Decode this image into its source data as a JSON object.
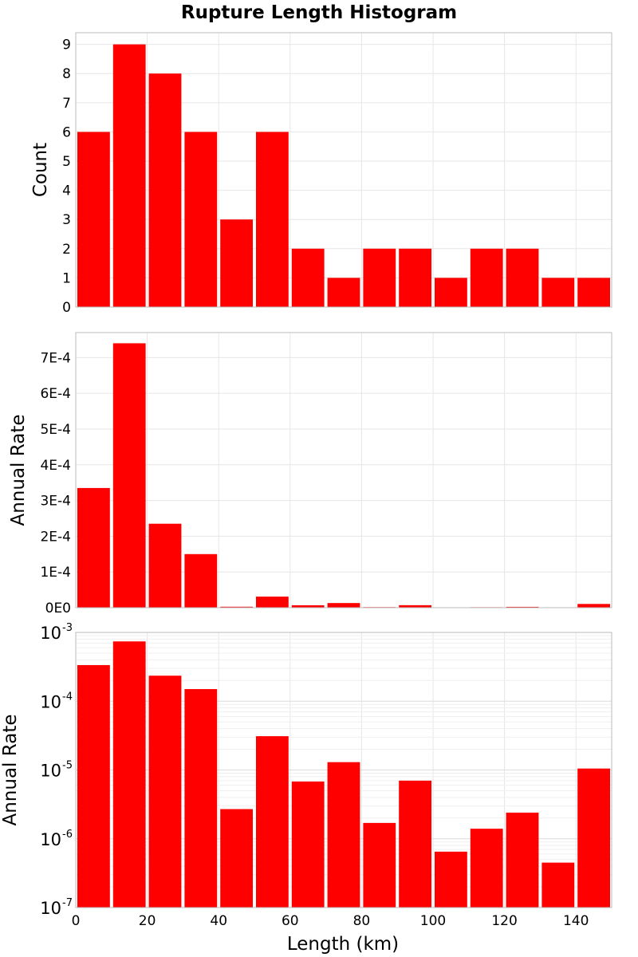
{
  "chart_data": {
    "title": "Rupture Length Histogram",
    "type": "bar",
    "x_categories": [
      "0-10",
      "10-20",
      "20-30",
      "30-40",
      "40-50",
      "50-60",
      "60-70",
      "70-80",
      "80-90",
      "90-100",
      "100-110",
      "110-120",
      "120-130",
      "130-140",
      "140-150"
    ],
    "bin_width": 10,
    "bin_starts": [
      0,
      10,
      20,
      30,
      40,
      50,
      60,
      70,
      80,
      90,
      100,
      110,
      120,
      130,
      140
    ],
    "xlabel": "Length (km)",
    "xlim": [
      0,
      150
    ],
    "x_ticks": [
      0,
      20,
      40,
      60,
      80,
      100,
      120,
      140
    ],
    "bar_color": "#ff0000",
    "grid": true,
    "panels": [
      {
        "ylabel": "Count",
        "scale": "linear",
        "ylim": [
          0,
          9.4
        ],
        "y_ticks": [
          0,
          1,
          2,
          3,
          4,
          5,
          6,
          7,
          8,
          9
        ],
        "y_tick_labels": [
          "0",
          "1",
          "2",
          "3",
          "4",
          "5",
          "6",
          "7",
          "8",
          "9"
        ],
        "values": [
          6,
          9,
          8,
          6,
          3,
          6,
          2,
          1,
          2,
          2,
          1,
          2,
          2,
          1,
          1
        ]
      },
      {
        "ylabel": "Annual Rate",
        "scale": "linear",
        "ylim": [
          0,
          0.00077
        ],
        "y_ticks": [
          0,
          0.0001,
          0.0002,
          0.0003,
          0.0004,
          0.0005,
          0.0006,
          0.0007
        ],
        "y_tick_labels": [
          "0E0",
          "1E-4",
          "2E-4",
          "3E-4",
          "4E-4",
          "5E-4",
          "6E-4",
          "7E-4"
        ],
        "values": [
          0.000335,
          0.00074,
          0.000235,
          0.00015,
          2.7e-06,
          3.1e-05,
          6.8e-06,
          1.3e-05,
          1.7e-06,
          7e-06,
          6.5e-07,
          1.4e-06,
          2.4e-06,
          4.5e-07,
          1.05e-05
        ]
      },
      {
        "ylabel": "Annual Rate",
        "scale": "log",
        "ylim": [
          1e-07,
          0.001
        ],
        "y_ticks": [
          1e-07,
          1e-06,
          1e-05,
          0.0001,
          0.001
        ],
        "y_tick_labels": [
          {
            "base": "10",
            "exp": "-7"
          },
          {
            "base": "10",
            "exp": "-6"
          },
          {
            "base": "10",
            "exp": "-5"
          },
          {
            "base": "10",
            "exp": "-4"
          },
          {
            "base": "10",
            "exp": "-3"
          }
        ],
        "values": [
          0.000335,
          0.00074,
          0.000235,
          0.00015,
          2.7e-06,
          3.1e-05,
          6.8e-06,
          1.3e-05,
          1.7e-06,
          7e-06,
          6.5e-07,
          1.4e-06,
          2.4e-06,
          4.5e-07,
          1.05e-05
        ]
      }
    ]
  }
}
